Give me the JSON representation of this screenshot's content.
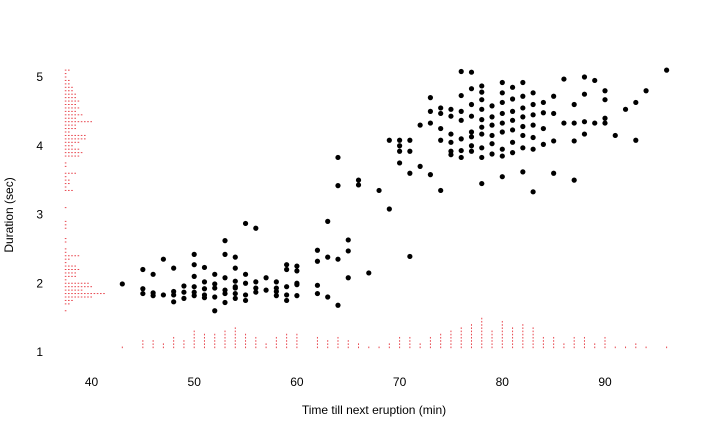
{
  "chart_data": {
    "type": "scatter",
    "title": "",
    "xlabel": "Time till next eruption (min)",
    "ylabel": "Duration (sec)",
    "xlim": [
      36.5,
      96.5
    ],
    "ylim": [
      0.85,
      5.25
    ],
    "x_ticks": [
      40,
      50,
      60,
      70,
      80,
      90
    ],
    "y_ticks": [
      1,
      2,
      3,
      4,
      5
    ],
    "grid": false,
    "point_color": "#000000",
    "rug_color": "#e8474f",
    "rug_note": "stacked-dot histograms of the marginal distributions",
    "points": [
      [
        43,
        1.99
      ],
      [
        45,
        2.2
      ],
      [
        45,
        1.92
      ],
      [
        45,
        1.85
      ],
      [
        46,
        1.82
      ],
      [
        46,
        2.13
      ],
      [
        46,
        1.86
      ],
      [
        47,
        1.83
      ],
      [
        47,
        2.35
      ],
      [
        48,
        1.83
      ],
      [
        48,
        1.73
      ],
      [
        48,
        2.22
      ],
      [
        48,
        1.88
      ],
      [
        49,
        1.87
      ],
      [
        49,
        1.96
      ],
      [
        49,
        1.78
      ],
      [
        50,
        2.27
      ],
      [
        50,
        1.95
      ],
      [
        50,
        2.1
      ],
      [
        50,
        1.87
      ],
      [
        50,
        2.42
      ],
      [
        50,
        1.82
      ],
      [
        51,
        1.92
      ],
      [
        51,
        2.23
      ],
      [
        51,
        1.79
      ],
      [
        51,
        1.83
      ],
      [
        51,
        2.02
      ],
      [
        52,
        1.6
      ],
      [
        52,
        1.99
      ],
      [
        52,
        1.93
      ],
      [
        52,
        2.13
      ],
      [
        52,
        1.8
      ],
      [
        53,
        1.85
      ],
      [
        53,
        2.42
      ],
      [
        53,
        1.9
      ],
      [
        53,
        2.62
      ],
      [
        53,
        2.08
      ],
      [
        53,
        1.72
      ],
      [
        54,
        2.22
      ],
      [
        54,
        1.93
      ],
      [
        54,
        1.78
      ],
      [
        54,
        2.38
      ],
      [
        54,
        1.95
      ],
      [
        54,
        2.03
      ],
      [
        54,
        1.85
      ],
      [
        55,
        2.87
      ],
      [
        55,
        2.13
      ],
      [
        55,
        1.83
      ],
      [
        55,
        1.75
      ],
      [
        55,
        2.0
      ],
      [
        56,
        1.87
      ],
      [
        56,
        2.8
      ],
      [
        56,
        1.93
      ],
      [
        56,
        2.02
      ],
      [
        57,
        2.08
      ],
      [
        57,
        1.9
      ],
      [
        58,
        1.82
      ],
      [
        58,
        1.93
      ],
      [
        58,
        2.02
      ],
      [
        58,
        1.88
      ],
      [
        59,
        2.27
      ],
      [
        59,
        2.2
      ],
      [
        59,
        1.95
      ],
      [
        59,
        1.75
      ],
      [
        59,
        1.83
      ],
      [
        60,
        2.0
      ],
      [
        60,
        2.25
      ],
      [
        60,
        1.98
      ],
      [
        60,
        1.82
      ],
      [
        60,
        2.18
      ],
      [
        62,
        2.48
      ],
      [
        62,
        2.32
      ],
      [
        62,
        1.97
      ],
      [
        62,
        1.85
      ],
      [
        63,
        2.9
      ],
      [
        63,
        2.38
      ],
      [
        63,
        1.8
      ],
      [
        64,
        3.83
      ],
      [
        64,
        3.42
      ],
      [
        64,
        2.35
      ],
      [
        64,
        1.68
      ],
      [
        65,
        2.63
      ],
      [
        65,
        2.47
      ],
      [
        65,
        2.08
      ],
      [
        66,
        3.5
      ],
      [
        66,
        3.43
      ],
      [
        67,
        2.15
      ],
      [
        68,
        3.35
      ],
      [
        69,
        3.08
      ],
      [
        69,
        4.08
      ],
      [
        70,
        4.08
      ],
      [
        70,
        4.0
      ],
      [
        70,
        3.92
      ],
      [
        70,
        3.75
      ],
      [
        71,
        4.08
      ],
      [
        71,
        3.92
      ],
      [
        71,
        3.6
      ],
      [
        71,
        2.39
      ],
      [
        72,
        4.3
      ],
      [
        72,
        3.7
      ],
      [
        73,
        4.7
      ],
      [
        73,
        4.5
      ],
      [
        73,
        4.33
      ],
      [
        73,
        3.58
      ],
      [
        74,
        4.55
      ],
      [
        74,
        4.47
      ],
      [
        74,
        4.25
      ],
      [
        74,
        4.08
      ],
      [
        74,
        3.35
      ],
      [
        75,
        4.53
      ],
      [
        75,
        4.43
      ],
      [
        75,
        4.17
      ],
      [
        75,
        4.05
      ],
      [
        75,
        3.92
      ],
      [
        75,
        3.87
      ],
      [
        76,
        5.08
      ],
      [
        76,
        4.73
      ],
      [
        76,
        4.5
      ],
      [
        76,
        4.37
      ],
      [
        76,
        4.1
      ],
      [
        76,
        3.93
      ],
      [
        76,
        3.83
      ],
      [
        77,
        5.07
      ],
      [
        77,
        4.83
      ],
      [
        77,
        4.6
      ],
      [
        77,
        4.43
      ],
      [
        77,
        4.2
      ],
      [
        77,
        4.13
      ],
      [
        77,
        4.0
      ],
      [
        77,
        3.92
      ],
      [
        78,
        4.87
      ],
      [
        78,
        4.78
      ],
      [
        78,
        4.67
      ],
      [
        78,
        4.53
      ],
      [
        78,
        4.38
      ],
      [
        78,
        4.27
      ],
      [
        78,
        4.17
      ],
      [
        78,
        3.97
      ],
      [
        78,
        3.83
      ],
      [
        78,
        3.45
      ],
      [
        79,
        4.58
      ],
      [
        79,
        4.42
      ],
      [
        79,
        4.3
      ],
      [
        79,
        4.15
      ],
      [
        79,
        4.03
      ],
      [
        79,
        3.88
      ],
      [
        80,
        4.92
      ],
      [
        80,
        4.77
      ],
      [
        80,
        4.63
      ],
      [
        80,
        4.47
      ],
      [
        80,
        4.33
      ],
      [
        80,
        4.2
      ],
      [
        80,
        3.95
      ],
      [
        80,
        3.85
      ],
      [
        80,
        3.55
      ],
      [
        81,
        4.85
      ],
      [
        81,
        4.68
      ],
      [
        81,
        4.5
      ],
      [
        81,
        4.37
      ],
      [
        81,
        4.23
      ],
      [
        81,
        4.05
      ],
      [
        81,
        3.9
      ],
      [
        82,
        4.92
      ],
      [
        82,
        4.72
      ],
      [
        82,
        4.55
      ],
      [
        82,
        4.42
      ],
      [
        82,
        4.28
      ],
      [
        82,
        4.15
      ],
      [
        82,
        3.97
      ],
      [
        82,
        3.62
      ],
      [
        83,
        4.77
      ],
      [
        83,
        4.6
      ],
      [
        83,
        4.45
      ],
      [
        83,
        4.3
      ],
      [
        83,
        4.12
      ],
      [
        83,
        3.95
      ],
      [
        83,
        3.33
      ],
      [
        84,
        4.63
      ],
      [
        84,
        4.48
      ],
      [
        84,
        4.25
      ],
      [
        84,
        4.02
      ],
      [
        85,
        4.72
      ],
      [
        85,
        4.47
      ],
      [
        85,
        4.07
      ],
      [
        85,
        3.6
      ],
      [
        86,
        4.97
      ],
      [
        86,
        4.33
      ],
      [
        87,
        4.6
      ],
      [
        87,
        4.33
      ],
      [
        87,
        4.07
      ],
      [
        87,
        3.5
      ],
      [
        88,
        5.0
      ],
      [
        88,
        4.75
      ],
      [
        88,
        4.35
      ],
      [
        88,
        4.17
      ],
      [
        89,
        4.95
      ],
      [
        89,
        4.33
      ],
      [
        90,
        4.8
      ],
      [
        90,
        4.67
      ],
      [
        90,
        4.4
      ],
      [
        90,
        4.33
      ],
      [
        91,
        4.15
      ],
      [
        92,
        4.53
      ],
      [
        93,
        4.08
      ],
      [
        93,
        4.63
      ],
      [
        94,
        4.8
      ],
      [
        96,
        5.1
      ]
    ]
  },
  "colors": {
    "background": "#ffffff",
    "axis": "#000000"
  }
}
